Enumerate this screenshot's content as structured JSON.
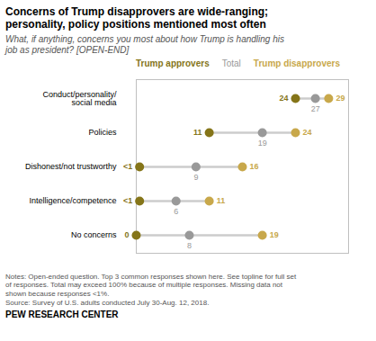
{
  "chart_data": {
    "type": "dot",
    "title": "Concerns of Trump disapprovers are wide-ranging;\npersonality, policy positions mentioned most often",
    "subtitle": "What, if anything, concerns you most about how Trump is handling his\njob as president? [OPEN-END]",
    "categories": [
      "Conduct/personality/\nsocial media",
      "Policies",
      "Dishonest/not trustworthy",
      "Intelligence/competence",
      "No concerns"
    ],
    "series": [
      {
        "name": "Trump approvers",
        "color": "#857519",
        "values": [
          24,
          11,
          0.5,
          0.5,
          0
        ],
        "value_labels": [
          "24",
          "11",
          "<1",
          "<1",
          "0"
        ]
      },
      {
        "name": "Total",
        "color": "#999999",
        "values": [
          27,
          19,
          9,
          6,
          8
        ]
      },
      {
        "name": "Trump disapprovers",
        "color": "#C8A84B",
        "values": [
          29,
          24,
          16,
          11,
          19
        ]
      }
    ],
    "xlim": [
      0,
      32
    ],
    "orientation": "horizontal",
    "data_labels": true,
    "tick_labels": "y",
    "legend": "top",
    "notes": [
      "Notes: Open-ended question. Top 3 common responses shown here. See topline for full set",
      "of responses. Total may exceed 100% because of multiple responses. Missing data not",
      "shown because responses <1%.",
      "Source: Survey of U.S. adults conducted July 30-Aug. 12, 2018."
    ],
    "source": "PEW RESEARCH CENTER"
  }
}
